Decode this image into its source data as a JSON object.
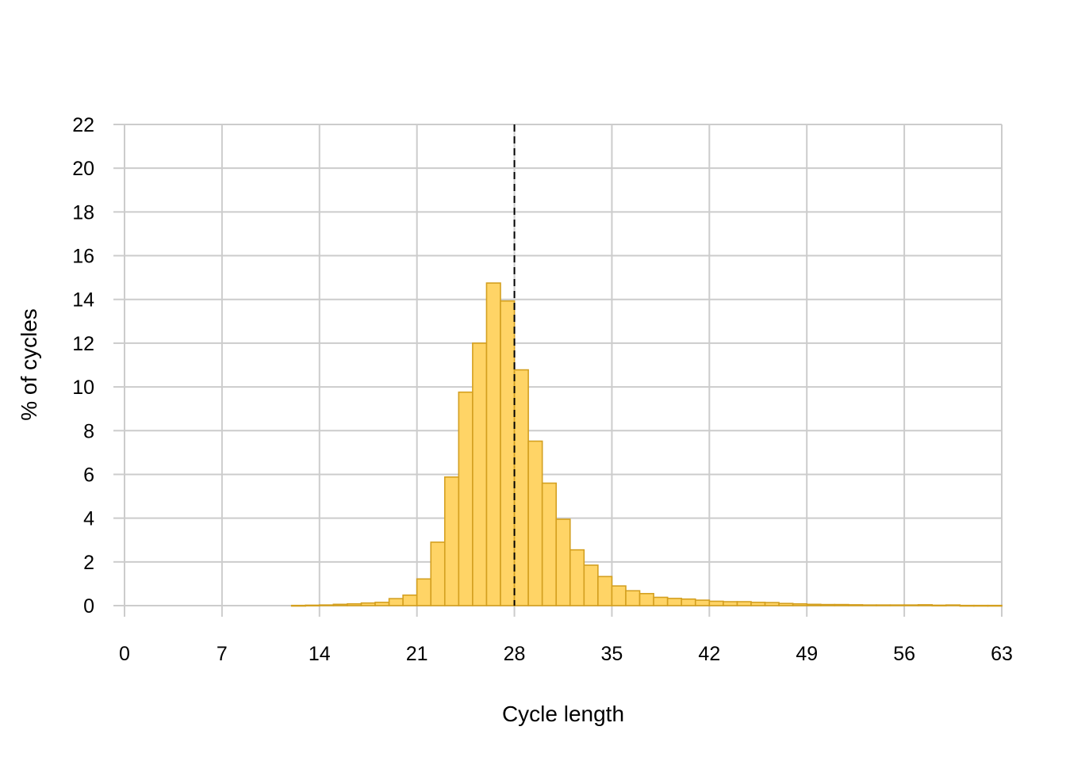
{
  "chart_data": {
    "type": "bar",
    "title": "",
    "xlabel": "Cycle length",
    "ylabel": "% of cycles",
    "xlim": [
      0,
      63
    ],
    "ylim": [
      0,
      22
    ],
    "x_ticks": [
      0,
      7,
      14,
      21,
      28,
      35,
      42,
      49,
      56,
      63
    ],
    "y_ticks": [
      0,
      2,
      4,
      6,
      8,
      10,
      12,
      14,
      16,
      18,
      20,
      22
    ],
    "grid": true,
    "bin_width": 1,
    "reference_line": {
      "x": 28,
      "style": "dashed",
      "color": "#000000"
    },
    "bar_fill": "#FFD466",
    "bar_stroke": "#D4A020",
    "series": [
      {
        "x": [
          12.5,
          13.5,
          14.5,
          15.5,
          16.5,
          17.5,
          18.5,
          19.5,
          20.5,
          21.5,
          22.5,
          23.5,
          24.5,
          25.5,
          26.5,
          27.5,
          28.5,
          29.5,
          30.5,
          31.5,
          32.5,
          33.5,
          34.5,
          35.5,
          36.5,
          37.5,
          38.5,
          39.5,
          40.5,
          41.5,
          42.5,
          43.5,
          44.5,
          45.5,
          46.5,
          47.5,
          48.5,
          49.5,
          50.5,
          51.5,
          52.5,
          53.5,
          54.5,
          55.5,
          56.5,
          57.5,
          58.5,
          59.5,
          60.5,
          61.5,
          62.5
        ],
        "values": [
          0.01,
          0.02,
          0.03,
          0.06,
          0.08,
          0.12,
          0.15,
          0.32,
          0.48,
          1.22,
          2.9,
          5.88,
          9.76,
          12.0,
          14.75,
          13.93,
          10.78,
          7.52,
          5.6,
          3.95,
          2.55,
          1.85,
          1.33,
          0.9,
          0.68,
          0.55,
          0.38,
          0.33,
          0.3,
          0.25,
          0.2,
          0.18,
          0.18,
          0.15,
          0.14,
          0.1,
          0.08,
          0.06,
          0.05,
          0.05,
          0.04,
          0.03,
          0.03,
          0.03,
          0.03,
          0.04,
          0.02,
          0.03,
          0.01,
          0.01,
          0.01
        ]
      }
    ]
  }
}
